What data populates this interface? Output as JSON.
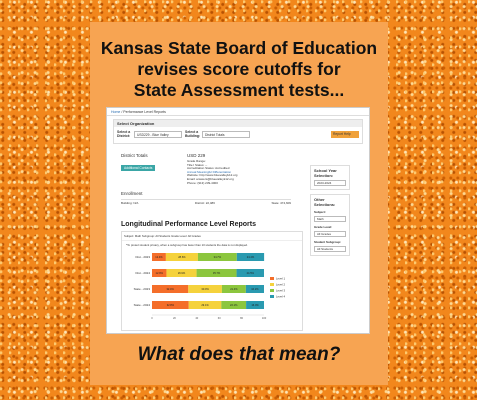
{
  "headline": [
    "Kansas State Board of Education",
    "revises score cutoffs for",
    "State Assessment tests..."
  ],
  "footer": "What does that mean?",
  "screenshot": {
    "breadcrumb": {
      "home": "Home",
      "sep": "/",
      "current": "Performance Level Reports"
    },
    "select_org": {
      "header": "Select Organization",
      "district_label": "Select a District:",
      "district_value": "USD229 - Blue Valley",
      "building_label": "Select a Building:",
      "building_value": "District Totals",
      "report_button": "Report Help",
      "advanced": "Advanced Search"
    },
    "district_totals": "District Totals",
    "add_button": "Additional Contacts",
    "usd": "USD 229",
    "info_lines": [
      "Grade Range:",
      "Title I Status: --",
      "Accreditation Status: Accredited",
      "Annual Meaningful Differentiation",
      "Website: http://www.bluevalleyk12.org",
      "Email: answers@bluevalleyk12.org",
      "Phone: (913) 239-4000"
    ],
    "enrollment": "Enrollment",
    "enroll_building": "Building: N/A",
    "enroll_district": "District: 22,486",
    "enroll_state": "State: 474,609",
    "side": {
      "sy_title": "School Year Selection:",
      "sy_value": "2023-2024",
      "other_title": "Other Selections:",
      "subject_label": "Subject:",
      "subject_value": "Math",
      "grade_label": "Grade Level:",
      "grade_value": "All Grades",
      "subgroup_label": "Student Subgroup:",
      "subgroup_value": "All Students"
    },
    "long_title": "Longitudinal Performance Level Reports",
    "chart_sub": "Subject: Math   Subgroup: All Students   Grade Level: All Grades",
    "chart_note": "*To protect student privacy, when a subgroup has fewer than 10 students the data is not displayed."
  },
  "chart_data": {
    "type": "bar",
    "orientation": "horizontal-stacked",
    "categories": [
      "Dist - 2023",
      "Dist - 2024",
      "State - 2023",
      "State - 2024"
    ],
    "series": [
      {
        "name": "Level 1",
        "color": "#f46e2a",
        "values": [
          12.4,
          12.9,
          32.4,
          32.8
        ]
      },
      {
        "name": "Level 2",
        "color": "#f5d23c",
        "values": [
          28.6,
          26.9,
          30.0,
          29.1
        ]
      },
      {
        "name": "Level 3",
        "color": "#8cc63e",
        "values": [
          34.7,
          35.7,
          21.4,
          22.1
        ]
      },
      {
        "name": "Level 4",
        "color": "#2a9ab0",
        "values": [
          24.4,
          24.5,
          16.2,
          16.0
        ]
      }
    ],
    "labels": [
      [
        "12.4%",
        "28.6%",
        "34.7%",
        "24.4%"
      ],
      [
        "12.9%",
        "26.9%",
        "35.7%",
        "24.5%"
      ],
      [
        "32.4%",
        "30.0%",
        "21.4%",
        "16.2%"
      ],
      [
        "32.8%",
        "29.1%",
        "22.1%",
        "16.0%"
      ]
    ],
    "ticks": [
      "0",
      "20",
      "40",
      "60",
      "80",
      "100"
    ],
    "xlim": [
      0,
      100
    ],
    "legend": "right"
  }
}
